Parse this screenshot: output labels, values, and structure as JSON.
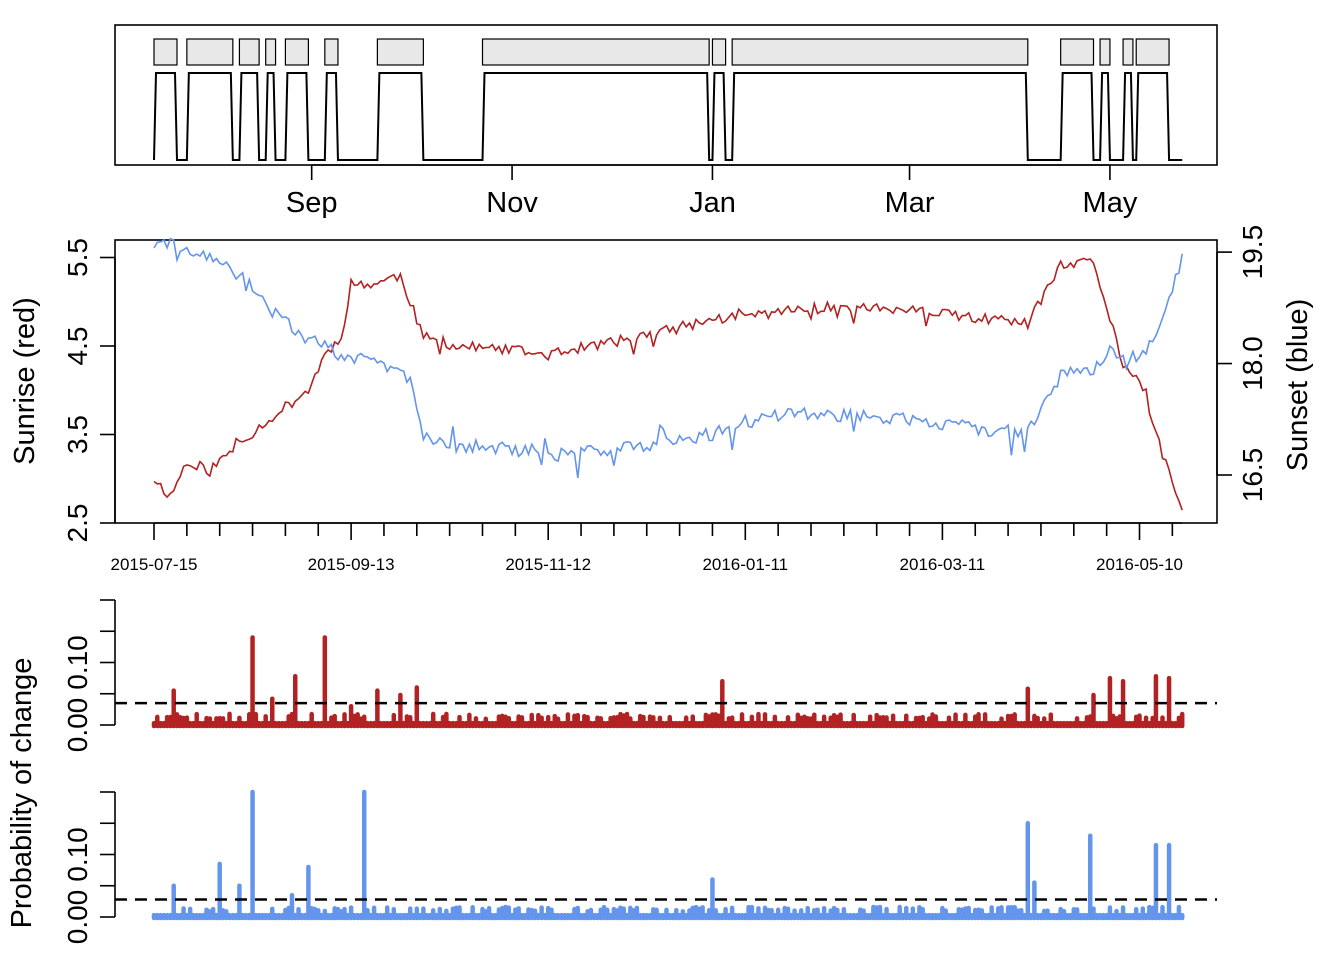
{
  "chart_data": [
    {
      "type": "line",
      "panel": "state-timeline",
      "x_tick_labels": [
        "Sep",
        "Nov",
        "Jan",
        "Mar",
        "May"
      ],
      "x_tick_dates": [
        "2015-09-01",
        "2015-11-01",
        "2016-01-01",
        "2016-03-01",
        "2016-05-01"
      ],
      "xlim": [
        "2015-07-08",
        "2016-06-01"
      ],
      "ylim": [
        0,
        1
      ],
      "state_colors": {
        "line": "#000000",
        "box_fill": "#e8e8e8",
        "box_stroke": "#000000"
      },
      "segments": [
        {
          "start": "2015-07-15",
          "end": "2015-07-22"
        },
        {
          "start": "2015-07-25",
          "end": "2015-08-08"
        },
        {
          "start": "2015-08-10",
          "end": "2015-08-16"
        },
        {
          "start": "2015-08-18",
          "end": "2015-08-21"
        },
        {
          "start": "2015-08-24",
          "end": "2015-08-31"
        },
        {
          "start": "2015-09-05",
          "end": "2015-09-09"
        },
        {
          "start": "2015-09-21",
          "end": "2015-10-05"
        },
        {
          "start": "2015-10-23",
          "end": "2015-12-31"
        },
        {
          "start": "2016-01-01",
          "end": "2016-01-05"
        },
        {
          "start": "2016-01-07",
          "end": "2016-04-06"
        },
        {
          "start": "2016-04-16",
          "end": "2016-04-26"
        },
        {
          "start": "2016-04-28",
          "end": "2016-05-01"
        },
        {
          "start": "2016-05-05",
          "end": "2016-05-08"
        },
        {
          "start": "2016-05-09",
          "end": "2016-05-19"
        }
      ]
    },
    {
      "type": "line",
      "panel": "sunrise-sunset",
      "xlim": [
        "2015-07-08",
        "2016-06-01"
      ],
      "x_tick_labels": [
        "2015-07-15",
        "2015-09-13",
        "2015-11-12",
        "2016-01-11",
        "2016-03-11",
        "2016-05-10"
      ],
      "y_left": {
        "label": "Sunrise (red)",
        "ticks": [
          "2.5",
          "3.5",
          "4.5",
          "5.5"
        ],
        "ylim": [
          2.5,
          5.6
        ]
      },
      "y_right": {
        "label": "Sunset (blue)",
        "ticks": [
          "16.5",
          "18.0",
          "19.5"
        ],
        "ylim": [
          16.3,
          19.9
        ]
      },
      "series": [
        {
          "color": "#b22222",
          "axis": "left",
          "dates": [
            "2015-07-15",
            "2015-07-20",
            "2015-07-25",
            "2015-08-01",
            "2015-08-10",
            "2015-08-20",
            "2015-08-31",
            "2015-09-05",
            "2015-09-10",
            "2015-09-13",
            "2015-09-20",
            "2015-09-28",
            "2015-10-05",
            "2015-10-15",
            "2015-11-01",
            "2015-11-12",
            "2015-11-25",
            "2015-12-10",
            "2016-01-01",
            "2016-01-25",
            "2016-02-10",
            "2016-03-01",
            "2016-03-25",
            "2016-04-06",
            "2016-04-16",
            "2016-04-26",
            "2016-05-05",
            "2016-05-10",
            "2016-05-15",
            "2016-05-23"
          ],
          "values": [
            3.0,
            2.8,
            3.2,
            3.1,
            3.4,
            3.7,
            4.0,
            4.4,
            4.6,
            5.2,
            5.2,
            5.3,
            4.6,
            4.5,
            4.45,
            4.4,
            4.5,
            4.6,
            4.8,
            4.9,
            4.95,
            4.9,
            4.8,
            4.75,
            5.4,
            5.45,
            4.3,
            4.1,
            3.5,
            2.6
          ]
        },
        {
          "color": "#6495ed",
          "axis": "right",
          "dates": [
            "2015-07-15",
            "2015-07-20",
            "2015-07-25",
            "2015-08-01",
            "2015-08-10",
            "2015-08-20",
            "2015-08-31",
            "2015-09-05",
            "2015-09-10",
            "2015-09-13",
            "2015-09-20",
            "2015-09-28",
            "2015-10-01",
            "2015-10-05",
            "2015-10-15",
            "2015-11-01",
            "2015-11-12",
            "2015-12-10",
            "2016-01-01",
            "2016-01-25",
            "2016-02-10",
            "2016-03-01",
            "2016-03-25",
            "2016-04-06",
            "2016-04-16",
            "2016-04-26",
            "2016-05-01",
            "2016-05-10",
            "2016-05-15",
            "2016-05-23"
          ],
          "values": [
            19.6,
            19.6,
            19.5,
            19.4,
            19.2,
            18.7,
            18.3,
            18.3,
            18.1,
            18.1,
            18.0,
            17.9,
            17.8,
            17.0,
            16.9,
            16.85,
            16.75,
            16.9,
            17.05,
            17.35,
            17.3,
            17.25,
            17.1,
            17.1,
            17.85,
            17.9,
            18.2,
            18.05,
            18.4,
            19.4
          ]
        }
      ]
    },
    {
      "type": "bar",
      "panel": "change-probability-sunrise",
      "ylabel": "Probability of change",
      "y_ticks": [
        "0.00",
        "0.10"
      ],
      "ylim": [
        0,
        0.2
      ],
      "threshold": 0.035,
      "color": "#b22222",
      "spikes": [
        {
          "date": "2015-07-21",
          "value": 0.055
        },
        {
          "date": "2015-08-14",
          "value": 0.14
        },
        {
          "date": "2015-08-20",
          "value": 0.042
        },
        {
          "date": "2015-08-27",
          "value": 0.078
        },
        {
          "date": "2015-09-05",
          "value": 0.14
        },
        {
          "date": "2015-09-13",
          "value": 0.03
        },
        {
          "date": "2015-09-21",
          "value": 0.055
        },
        {
          "date": "2015-09-28",
          "value": 0.048
        },
        {
          "date": "2015-10-03",
          "value": 0.06
        },
        {
          "date": "2016-01-04",
          "value": 0.07
        },
        {
          "date": "2016-04-06",
          "value": 0.058
        },
        {
          "date": "2016-04-26",
          "value": 0.048
        },
        {
          "date": "2016-05-01",
          "value": 0.075
        },
        {
          "date": "2016-05-05",
          "value": 0.07
        },
        {
          "date": "2016-05-15",
          "value": 0.078
        },
        {
          "date": "2016-05-19",
          "value": 0.075
        }
      ]
    },
    {
      "type": "bar",
      "panel": "change-probability-sunset",
      "ylabel": "Probability of change",
      "y_ticks": [
        "0.00",
        "0.10"
      ],
      "ylim": [
        0,
        0.2
      ],
      "threshold": 0.028,
      "color": "#6495ed",
      "spikes": [
        {
          "date": "2015-07-21",
          "value": 0.05
        },
        {
          "date": "2015-08-04",
          "value": 0.085
        },
        {
          "date": "2015-08-10",
          "value": 0.05
        },
        {
          "date": "2015-08-14",
          "value": 0.2
        },
        {
          "date": "2015-08-26",
          "value": 0.035
        },
        {
          "date": "2015-08-31",
          "value": 0.08
        },
        {
          "date": "2015-09-17",
          "value": 0.2
        },
        {
          "date": "2016-01-01",
          "value": 0.06
        },
        {
          "date": "2016-04-06",
          "value": 0.15
        },
        {
          "date": "2016-04-08",
          "value": 0.055
        },
        {
          "date": "2016-04-25",
          "value": 0.13
        },
        {
          "date": "2016-05-15",
          "value": 0.115
        },
        {
          "date": "2016-05-19",
          "value": 0.115
        }
      ]
    }
  ]
}
